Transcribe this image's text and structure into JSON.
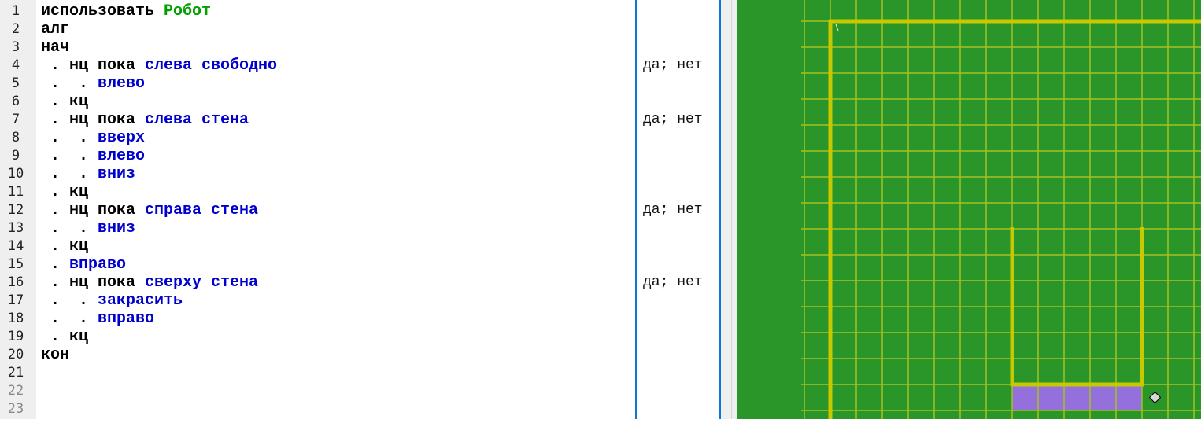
{
  "editor": {
    "line_numbers": [
      "1",
      "2",
      "3",
      "4",
      "5",
      "6",
      "7",
      "8",
      "9",
      "10",
      "11",
      "12",
      "13",
      "14",
      "15",
      "16",
      "17",
      "18",
      "19",
      "20",
      "21",
      "22",
      "23"
    ],
    "lines": [
      [
        {
          "t": "использовать ",
          "k": "kw"
        },
        {
          "t": "Робот",
          "k": "mod"
        }
      ],
      [
        {
          "t": "алг",
          "k": "kw"
        }
      ],
      [
        {
          "t": "нач",
          "k": "kw"
        }
      ],
      [
        {
          "t": " . нц пока ",
          "k": "kw"
        },
        {
          "t": "слева свободно",
          "k": "act"
        }
      ],
      [
        {
          "t": " .  . ",
          "k": "kw"
        },
        {
          "t": "влево",
          "k": "act"
        }
      ],
      [
        {
          "t": " . кц",
          "k": "kw"
        }
      ],
      [
        {
          "t": " . нц пока ",
          "k": "kw"
        },
        {
          "t": "слева стена",
          "k": "act"
        }
      ],
      [
        {
          "t": " .  . ",
          "k": "kw"
        },
        {
          "t": "вверх",
          "k": "act"
        }
      ],
      [
        {
          "t": " .  . ",
          "k": "kw"
        },
        {
          "t": "влево",
          "k": "act"
        }
      ],
      [
        {
          "t": " .  . ",
          "k": "kw"
        },
        {
          "t": "вниз",
          "k": "act"
        }
      ],
      [
        {
          "t": " . кц",
          "k": "kw"
        }
      ],
      [
        {
          "t": " . нц пока ",
          "k": "kw"
        },
        {
          "t": "справа стена",
          "k": "act"
        }
      ],
      [
        {
          "t": " .  . ",
          "k": "kw"
        },
        {
          "t": "вниз",
          "k": "act"
        }
      ],
      [
        {
          "t": " . кц",
          "k": "kw"
        }
      ],
      [
        {
          "t": " . ",
          "k": "kw"
        },
        {
          "t": "вправо",
          "k": "act"
        }
      ],
      [
        {
          "t": " . нц пока ",
          "k": "kw"
        },
        {
          "t": "сверху стена",
          "k": "act"
        }
      ],
      [
        {
          "t": " .  . ",
          "k": "kw"
        },
        {
          "t": "закрасить",
          "k": "act"
        }
      ],
      [
        {
          "t": " .  . ",
          "k": "kw"
        },
        {
          "t": "вправо",
          "k": "act"
        }
      ],
      [
        {
          "t": " . кц",
          "k": "kw"
        }
      ],
      [
        {
          "t": "кон",
          "k": "kw"
        }
      ],
      [],
      [],
      []
    ]
  },
  "margin": {
    "values": [
      "",
      "",
      "",
      "да; нет",
      "",
      "",
      "да; нет",
      "",
      "",
      "",
      "",
      "да; нет",
      "",
      "",
      "",
      "да; нет",
      "",
      "",
      "",
      "",
      "",
      "",
      ""
    ]
  },
  "robot_field": {
    "colors": {
      "background": "#2a962a",
      "grid": "#a8c020",
      "wall": "#c8c800",
      "painted": "#9370db",
      "robot": "#d8d8d8"
    },
    "walls": [
      {
        "type": "h",
        "row": 0,
        "from_col": 0,
        "to_col": 15
      },
      {
        "type": "v",
        "col": 0,
        "from_row": 0,
        "to_row": 16
      },
      {
        "type": "v",
        "col": 7,
        "from_row": 8,
        "to_row": 14
      },
      {
        "type": "v",
        "col": 12,
        "from_row": 8,
        "to_row": 14
      },
      {
        "type": "h",
        "row": 14,
        "from_col": 7,
        "to_col": 12
      }
    ],
    "painted_cells": [
      [
        14,
        7
      ],
      [
        14,
        8
      ],
      [
        14,
        9
      ],
      [
        14,
        10
      ],
      [
        14,
        11
      ]
    ],
    "robot": {
      "row": 14,
      "col": 12
    }
  }
}
